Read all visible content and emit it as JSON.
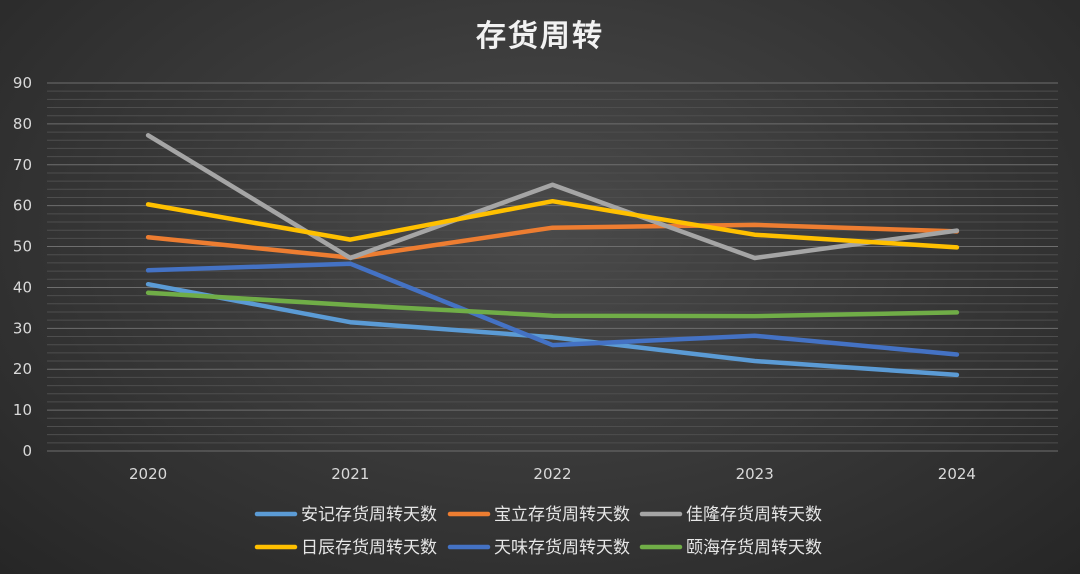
{
  "chart_data": {
    "type": "line",
    "title": "存货周转",
    "xlabel": "",
    "ylabel": "",
    "x": [
      "2020",
      "2021",
      "2022",
      "2023",
      "2024"
    ],
    "ylim": [
      0,
      90
    ],
    "yticks": [
      0,
      10,
      20,
      30,
      40,
      50,
      60,
      70,
      80,
      90
    ],
    "grid": true,
    "legend_position": "bottom",
    "series": [
      {
        "name": "安记存货周转天数",
        "color": "#5b9bd5",
        "values": [
          40.8,
          31.5,
          27.8,
          22.0,
          18.6
        ]
      },
      {
        "name": "宝立存货周转天数",
        "color": "#ed7d31",
        "values": [
          52.3,
          47.3,
          54.6,
          55.3,
          53.7
        ]
      },
      {
        "name": "佳隆存货周转天数",
        "color": "#a5a5a5",
        "values": [
          77.2,
          47.2,
          65.1,
          47.2,
          53.9
        ]
      },
      {
        "name": "日辰存货周转天数",
        "color": "#ffc000",
        "values": [
          60.3,
          51.7,
          61.1,
          52.9,
          49.8
        ]
      },
      {
        "name": "天味存货周转天数",
        "color": "#4472c4",
        "values": [
          44.2,
          45.8,
          25.9,
          28.2,
          23.6
        ]
      },
      {
        "name": "颐海存货周转天数",
        "color": "#70ad47",
        "values": [
          38.7,
          35.7,
          33.1,
          33.0,
          33.9
        ]
      }
    ]
  }
}
